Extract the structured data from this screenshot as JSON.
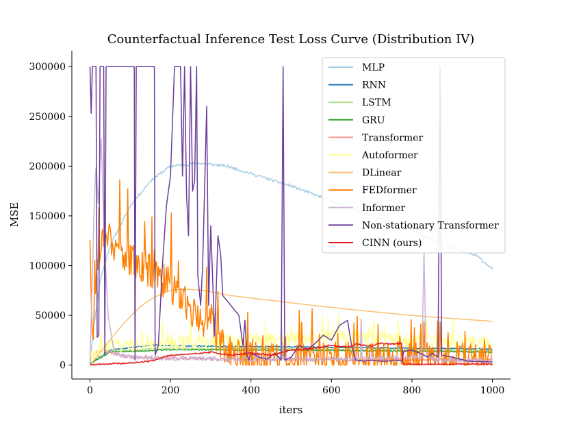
{
  "chart_data": {
    "type": "line",
    "title": "Counterfactual Inference Test Loss Curve (Distribution IV)",
    "xlabel": "iters",
    "ylabel": "MSE",
    "xlim": [
      -45,
      1045
    ],
    "ylim": [
      -14000,
      316000
    ],
    "xticks": [
      0,
      200,
      400,
      600,
      800,
      1000
    ],
    "yticks": [
      0,
      50000,
      100000,
      150000,
      200000,
      250000,
      300000
    ],
    "legend_position": "top-right",
    "series": [
      {
        "name": "MLP",
        "color": "#a6cee3",
        "style": "noisy",
        "noise": 1500,
        "seed": 11,
        "points": [
          [
            0,
            3000
          ],
          [
            10,
            40000
          ],
          [
            25,
            85000
          ],
          [
            50,
            120000
          ],
          [
            100,
            160000
          ],
          [
            150,
            185000
          ],
          [
            200,
            200000
          ],
          [
            270,
            203000
          ],
          [
            340,
            200000
          ],
          [
            420,
            190000
          ],
          [
            500,
            180000
          ],
          [
            600,
            165000
          ],
          [
            700,
            150000
          ],
          [
            800,
            135000
          ],
          [
            900,
            118000
          ],
          [
            960,
            110000
          ],
          [
            1000,
            97000
          ]
        ]
      },
      {
        "name": "RNN",
        "color": "#1f78b4",
        "style": "noisy",
        "noise": 600,
        "seed": 12,
        "points": [
          [
            0,
            2000
          ],
          [
            50,
            15000
          ],
          [
            150,
            20000
          ],
          [
            300,
            19000
          ],
          [
            600,
            18000
          ],
          [
            800,
            17000
          ],
          [
            1000,
            16000
          ]
        ]
      },
      {
        "name": "LSTM",
        "color": "#b2df8a",
        "style": "noisy",
        "noise": 700,
        "seed": 13,
        "points": [
          [
            0,
            1500
          ],
          [
            50,
            14000
          ],
          [
            200,
            17000
          ],
          [
            500,
            16500
          ],
          [
            800,
            15500
          ],
          [
            1000,
            14000
          ]
        ]
      },
      {
        "name": "GRU",
        "color": "#33a02c",
        "style": "noisy",
        "noise": 600,
        "seed": 14,
        "points": [
          [
            0,
            1500
          ],
          [
            50,
            13000
          ],
          [
            200,
            15500
          ],
          [
            500,
            15000
          ],
          [
            800,
            14000
          ],
          [
            1000,
            13000
          ]
        ]
      },
      {
        "name": "Transformer",
        "color": "#fb9a99",
        "style": "noisy",
        "noise": 1500,
        "seed": 15,
        "points": [
          [
            0,
            5000
          ],
          [
            20,
            15000
          ],
          [
            100,
            8000
          ],
          [
            300,
            6000
          ],
          [
            600,
            5500
          ],
          [
            1000,
            5000
          ]
        ]
      },
      {
        "name": "Autoformer",
        "color": "#ffff99",
        "style": "spiky",
        "noise": 7000,
        "seed": 16,
        "spikeProb": 0.09,
        "spikeMax": 25000,
        "points": [
          [
            0,
            10000
          ],
          [
            50,
            20000
          ],
          [
            200,
            22000
          ],
          [
            400,
            25000
          ],
          [
            600,
            28000
          ],
          [
            800,
            25000
          ],
          [
            1000,
            22000
          ]
        ]
      },
      {
        "name": "DLinear",
        "color": "#fdbf6f",
        "style": "smooth",
        "points": [
          [
            0,
            0
          ],
          [
            30,
            15000
          ],
          [
            80,
            40000
          ],
          [
            130,
            60000
          ],
          [
            180,
            72000
          ],
          [
            220,
            76000
          ],
          [
            280,
            75000
          ],
          [
            350,
            70000
          ],
          [
            450,
            65000
          ],
          [
            600,
            58000
          ],
          [
            800,
            50000
          ],
          [
            1000,
            44000
          ]
        ]
      },
      {
        "name": "FEDformer",
        "color": "#ff7f00",
        "style": "spiky",
        "noise": 18000,
        "seed": 17,
        "spikeProb": 0.08,
        "spikeMax": 60000,
        "points": [
          [
            0,
            135000
          ],
          [
            5,
            20000
          ],
          [
            20,
            110000
          ],
          [
            40,
            140000
          ],
          [
            60,
            120000
          ],
          [
            100,
            105000
          ],
          [
            150,
            95000
          ],
          [
            200,
            80000
          ],
          [
            230,
            65000
          ],
          [
            260,
            50000
          ],
          [
            300,
            40000
          ],
          [
            340,
            12000
          ],
          [
            400,
            8000
          ],
          [
            600,
            6000
          ],
          [
            800,
            6000
          ],
          [
            1000,
            5000
          ]
        ]
      },
      {
        "name": "Informer",
        "color": "#cab2d6",
        "style": "spiky",
        "noise": 2500,
        "seed": 18,
        "spikeProb": 0.015,
        "spikeMax": 40000,
        "points": [
          [
            0,
            5000
          ],
          [
            10,
            150000
          ],
          [
            15,
            210000
          ],
          [
            20,
            160000
          ],
          [
            28,
            230000
          ],
          [
            35,
            130000
          ],
          [
            45,
            50000
          ],
          [
            60,
            12000
          ],
          [
            100,
            8000
          ],
          [
            300,
            6000
          ],
          [
            600,
            6000
          ],
          [
            800,
            7000
          ],
          [
            825,
            9000
          ],
          [
            830,
            115000
          ],
          [
            835,
            10000
          ],
          [
            860,
            5000
          ],
          [
            1000,
            4000
          ]
        ]
      },
      {
        "name": "Non-stationary Transformer",
        "color": "#6a3d9a",
        "style": "poly",
        "points": [
          [
            0,
            300000
          ],
          [
            3,
            253000
          ],
          [
            6,
            300000
          ],
          [
            15,
            300000
          ],
          [
            18,
            28000
          ],
          [
            22,
            30000
          ],
          [
            25,
            300000
          ],
          [
            34,
            300000
          ],
          [
            37,
            10000
          ],
          [
            40,
            300000
          ],
          [
            110,
            300000
          ],
          [
            112,
            5000
          ],
          [
            115,
            300000
          ],
          [
            160,
            300000
          ],
          [
            162,
            10000
          ],
          [
            170,
            20000
          ],
          [
            180,
            100000
          ],
          [
            190,
            160000
          ],
          [
            200,
            190000
          ],
          [
            210,
            300000
          ],
          [
            225,
            300000
          ],
          [
            230,
            190000
          ],
          [
            235,
            300000
          ],
          [
            240,
            170000
          ],
          [
            245,
            130000
          ],
          [
            250,
            300000
          ],
          [
            255,
            175000
          ],
          [
            260,
            185000
          ],
          [
            265,
            300000
          ],
          [
            268,
            90000
          ],
          [
            275,
            60000
          ],
          [
            280,
            100000
          ],
          [
            285,
            180000
          ],
          [
            290,
            260000
          ],
          [
            295,
            60000
          ],
          [
            300,
            140000
          ],
          [
            310,
            30000
          ],
          [
            318,
            130000
          ],
          [
            325,
            110000
          ],
          [
            330,
            70000
          ],
          [
            340,
            65000
          ],
          [
            350,
            60000
          ],
          [
            360,
            55000
          ],
          [
            370,
            50000
          ],
          [
            380,
            20000
          ],
          [
            385,
            45000
          ],
          [
            390,
            10000
          ],
          [
            395,
            5000
          ],
          [
            400,
            12000
          ],
          [
            420,
            8000
          ],
          [
            440,
            6000
          ],
          [
            460,
            12000
          ],
          [
            475,
            5000
          ],
          [
            480,
            300000
          ],
          [
            484,
            5000
          ],
          [
            500,
            8000
          ],
          [
            520,
            20000
          ],
          [
            540,
            15000
          ],
          [
            560,
            22000
          ],
          [
            580,
            30000
          ],
          [
            600,
            25000
          ],
          [
            620,
            40000
          ],
          [
            640,
            45000
          ],
          [
            650,
            20000
          ],
          [
            660,
            5000
          ],
          [
            680,
            4000
          ],
          [
            700,
            5000
          ],
          [
            720,
            4000
          ],
          [
            740,
            4000
          ],
          [
            760,
            5000
          ],
          [
            775,
            4000
          ],
          [
            780,
            14000
          ],
          [
            800,
            15000
          ],
          [
            820,
            12000
          ],
          [
            840,
            8000
          ],
          [
            850,
            12000
          ],
          [
            865,
            8000
          ],
          [
            870,
            300000
          ],
          [
            874,
            10000
          ],
          [
            900,
            8000
          ],
          [
            940,
            4000
          ],
          [
            1000,
            3000
          ]
        ]
      },
      {
        "name": "CINN (ours)",
        "color": "#e31a1c",
        "style": "noisy",
        "noise": 700,
        "seed": 19,
        "points": [
          [
            0,
            500
          ],
          [
            100,
            2000
          ],
          [
            150,
            4000
          ],
          [
            160,
            5000
          ],
          [
            200,
            10000
          ],
          [
            250,
            11000
          ],
          [
            300,
            13000
          ],
          [
            350,
            10000
          ],
          [
            400,
            12000
          ],
          [
            450,
            10000
          ],
          [
            500,
            15000
          ],
          [
            560,
            17000
          ],
          [
            600,
            20000
          ],
          [
            640,
            18000
          ],
          [
            660,
            21000
          ],
          [
            700,
            19000
          ],
          [
            720,
            22000
          ],
          [
            760,
            21000
          ],
          [
            775,
            22000
          ],
          [
            778,
            1000
          ],
          [
            820,
            1000
          ],
          [
            1000,
            1000
          ]
        ]
      }
    ]
  }
}
